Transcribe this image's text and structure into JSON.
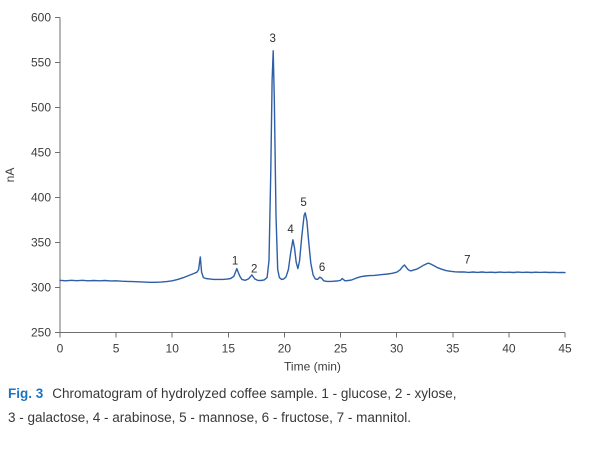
{
  "figure": {
    "label": "Fig. 3",
    "caption_line1": "Chromatogram of hydrolyzed coffee sample. 1 - glucose, 2 - xylose,",
    "caption_line2": "3 - galactose, 4 - arabinose, 5 - mannose, 6 - fructose, 7 - mannitol."
  },
  "colors": {
    "trace": "#2e5fa6",
    "axis": "#6f6f6f",
    "tick_text": "#3d3d3d",
    "annotation_text": "#2f2f2f",
    "fig_label": "#1b74c0",
    "caption_text": "#383838"
  },
  "chart_data": {
    "type": "line",
    "title": "",
    "xlabel": "Time (min)",
    "ylabel": "nA",
    "xlim": [
      0,
      45
    ],
    "ylim": [
      250,
      600
    ],
    "xticks": [
      0,
      5,
      10,
      15,
      20,
      25,
      30,
      35,
      40,
      45
    ],
    "yticks": [
      250,
      300,
      350,
      400,
      450,
      500,
      550,
      600
    ],
    "grid": false,
    "legend": "none",
    "peaks": [
      {
        "number": 1,
        "compound": "glucose",
        "retention_time_min": 15.8,
        "peak_height_nA": 321
      },
      {
        "number": 2,
        "compound": "xylose",
        "retention_time_min": 17.1,
        "peak_height_nA": 314
      },
      {
        "number": 3,
        "compound": "galactose",
        "retention_time_min": 19.0,
        "peak_height_nA": 563
      },
      {
        "number": 4,
        "compound": "arabinose",
        "retention_time_min": 20.8,
        "peak_height_nA": 353
      },
      {
        "number": 5,
        "compound": "mannose",
        "retention_time_min": 21.9,
        "peak_height_nA": 383
      },
      {
        "number": 6,
        "compound": "fructose",
        "retention_time_min": 23.2,
        "peak_height_nA": 311
      },
      {
        "number": 7,
        "compound": "mannitol",
        "retention_time_min": 36.3,
        "peak_height_nA": 317
      }
    ],
    "annotations": [
      {
        "text": "1",
        "x": 15.6,
        "y": 330
      },
      {
        "text": "2",
        "x": 17.3,
        "y": 321
      },
      {
        "text": "3",
        "x": 18.95,
        "y": 577
      },
      {
        "text": "4",
        "x": 20.55,
        "y": 365
      },
      {
        "text": "5",
        "x": 21.7,
        "y": 395
      },
      {
        "text": "6",
        "x": 23.35,
        "y": 323
      },
      {
        "text": "7",
        "x": 36.3,
        "y": 331
      }
    ],
    "series": [
      {
        "name": "detector signal",
        "points": [
          [
            0,
            308
          ],
          [
            0.5,
            307.5
          ],
          [
            1,
            308
          ],
          [
            1.5,
            307.6
          ],
          [
            2,
            308
          ],
          [
            2.5,
            307.5
          ],
          [
            3,
            307.8
          ],
          [
            3.5,
            307.4
          ],
          [
            4,
            307.8
          ],
          [
            4.5,
            307.3
          ],
          [
            5,
            307.5
          ],
          [
            5.5,
            307
          ],
          [
            6,
            306.8
          ],
          [
            6.5,
            306.5
          ],
          [
            7,
            306.3
          ],
          [
            7.5,
            306
          ],
          [
            8,
            305.8
          ],
          [
            8.5,
            305.8
          ],
          [
            9,
            306
          ],
          [
            9.5,
            306.5
          ],
          [
            10,
            307.5
          ],
          [
            10.5,
            309
          ],
          [
            11,
            311
          ],
          [
            11.5,
            313.5
          ],
          [
            11.9,
            315.5
          ],
          [
            12.2,
            317
          ],
          [
            12.35,
            320
          ],
          [
            12.5,
            334
          ],
          [
            12.62,
            317
          ],
          [
            12.78,
            311
          ],
          [
            13,
            310
          ],
          [
            13.3,
            309.5
          ],
          [
            13.7,
            309
          ],
          [
            14.1,
            309
          ],
          [
            14.5,
            309
          ],
          [
            14.9,
            309.3
          ],
          [
            15.2,
            310
          ],
          [
            15.5,
            312.5
          ],
          [
            15.75,
            321
          ],
          [
            16,
            313
          ],
          [
            16.2,
            309
          ],
          [
            16.5,
            308
          ],
          [
            16.8,
            309.5
          ],
          [
            17.1,
            314
          ],
          [
            17.35,
            309.5
          ],
          [
            17.6,
            308
          ],
          [
            17.9,
            307.8
          ],
          [
            18.2,
            308.5
          ],
          [
            18.45,
            311
          ],
          [
            18.62,
            330
          ],
          [
            18.78,
            430
          ],
          [
            18.9,
            530
          ],
          [
            19,
            563
          ],
          [
            19.1,
            510
          ],
          [
            19.25,
            380
          ],
          [
            19.4,
            320
          ],
          [
            19.55,
            311
          ],
          [
            19.75,
            309
          ],
          [
            19.95,
            309.5
          ],
          [
            20.15,
            312
          ],
          [
            20.35,
            320
          ],
          [
            20.55,
            338
          ],
          [
            20.75,
            353
          ],
          [
            20.9,
            344
          ],
          [
            21.05,
            328
          ],
          [
            21.2,
            321
          ],
          [
            21.35,
            330
          ],
          [
            21.55,
            357
          ],
          [
            21.75,
            380
          ],
          [
            21.85,
            383
          ],
          [
            22,
            374
          ],
          [
            22.15,
            352
          ],
          [
            22.35,
            327
          ],
          [
            22.55,
            314
          ],
          [
            22.75,
            309.5
          ],
          [
            22.95,
            309
          ],
          [
            23.15,
            311.5
          ],
          [
            23.3,
            310.5
          ],
          [
            23.5,
            307.5
          ],
          [
            23.8,
            306.8
          ],
          [
            24.1,
            306.8
          ],
          [
            24.4,
            307
          ],
          [
            24.7,
            307.2
          ],
          [
            25,
            308
          ],
          [
            25.15,
            310
          ],
          [
            25.4,
            307.5
          ],
          [
            25.7,
            307.8
          ],
          [
            26,
            308.5
          ],
          [
            26.4,
            310.5
          ],
          [
            26.8,
            312
          ],
          [
            27.2,
            312.8
          ],
          [
            27.6,
            313.2
          ],
          [
            28,
            313.5
          ],
          [
            28.4,
            314
          ],
          [
            28.8,
            314.5
          ],
          [
            29.2,
            315
          ],
          [
            29.6,
            315.8
          ],
          [
            30,
            317
          ],
          [
            30.3,
            319.5
          ],
          [
            30.55,
            323.5
          ],
          [
            30.7,
            325
          ],
          [
            30.85,
            322.5
          ],
          [
            31.05,
            319.5
          ],
          [
            31.25,
            318.5
          ],
          [
            31.5,
            319.3
          ],
          [
            31.8,
            320.5
          ],
          [
            32.1,
            322.5
          ],
          [
            32.4,
            324.8
          ],
          [
            32.7,
            326.5
          ],
          [
            32.85,
            327
          ],
          [
            33.05,
            326
          ],
          [
            33.35,
            324
          ],
          [
            33.65,
            322
          ],
          [
            34,
            320.3
          ],
          [
            34.4,
            318.8
          ],
          [
            34.8,
            318
          ],
          [
            35.2,
            317.5
          ],
          [
            35.6,
            317.2
          ],
          [
            36,
            317.3
          ],
          [
            36.4,
            316.8
          ],
          [
            36.8,
            317.2
          ],
          [
            37.2,
            316.8
          ],
          [
            37.6,
            317.2
          ],
          [
            38,
            316.8
          ],
          [
            38.4,
            317
          ],
          [
            38.8,
            316.7
          ],
          [
            39.2,
            317.1
          ],
          [
            39.6,
            316.8
          ],
          [
            40,
            317
          ],
          [
            40.4,
            316.7
          ],
          [
            40.8,
            317.1
          ],
          [
            41.2,
            316.8
          ],
          [
            41.6,
            317
          ],
          [
            42,
            316.7
          ],
          [
            42.4,
            317
          ],
          [
            42.8,
            316.8
          ],
          [
            43.2,
            317
          ],
          [
            43.6,
            316.7
          ],
          [
            44,
            316.9
          ],
          [
            44.4,
            316.6
          ],
          [
            44.7,
            316.8
          ],
          [
            45,
            316.5
          ]
        ]
      }
    ]
  }
}
